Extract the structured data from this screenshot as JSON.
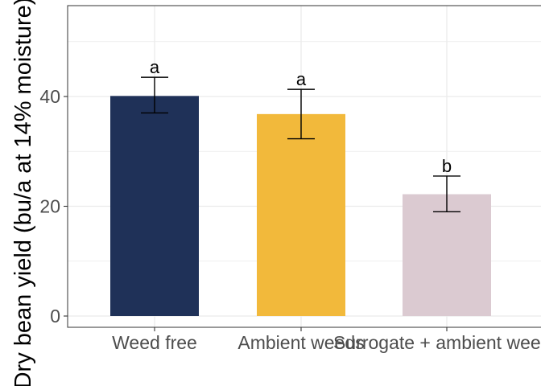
{
  "chart_data": {
    "type": "bar",
    "categories": [
      "Weed free",
      "Ambient weeds",
      "Surrogate + ambient weeds"
    ],
    "values": [
      40.1,
      36.8,
      22.2
    ],
    "error_low": [
      37.0,
      32.3,
      19.0
    ],
    "error_high": [
      43.5,
      41.3,
      25.5
    ],
    "significance_letters": [
      "a",
      "a",
      "b"
    ],
    "colors": [
      "#1f3158",
      "#f2b93b",
      "#dbcad1"
    ],
    "ylabel": "Dry bean yield (bu/a at 14% moisture)",
    "xlabel": "",
    "ylim": [
      -2,
      56
    ],
    "yticks": [
      0,
      20,
      40
    ],
    "grid": true,
    "legend": "none"
  }
}
